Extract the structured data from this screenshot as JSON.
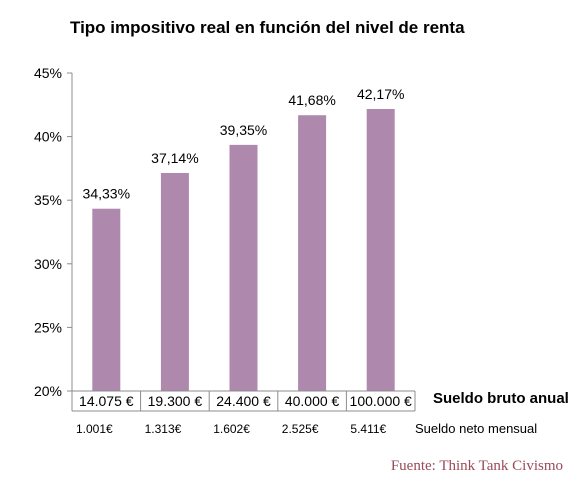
{
  "chart_data": {
    "type": "bar",
    "title": "Tipo impositivo real en función del nivel de renta",
    "categories": [
      "14.075 €",
      "19.300 €",
      "24.400 €",
      "40.000 €",
      "100.000 €"
    ],
    "categories_label": "Sueldo bruto anual",
    "secondary_labels": [
      "1.001€",
      "1.313€",
      "1.602€",
      "2.525€",
      "5.411€"
    ],
    "secondary_label_title": "Sueldo neto mensual",
    "values": [
      34.33,
      37.14,
      39.35,
      41.68,
      42.17
    ],
    "data_labels": [
      "34,33%",
      "37,14%",
      "39,35%",
      "41,68%",
      "42,17%"
    ],
    "ylim": [
      20,
      45
    ],
    "yticks": [
      20,
      25,
      30,
      35,
      40,
      45
    ],
    "ytick_labels": [
      "20%",
      "25%",
      "30%",
      "35%",
      "40%",
      "45%"
    ],
    "bar_color": "#ae88ad",
    "grid": false,
    "legend": "none"
  },
  "source": "Fuente: Think Tank Civismo"
}
